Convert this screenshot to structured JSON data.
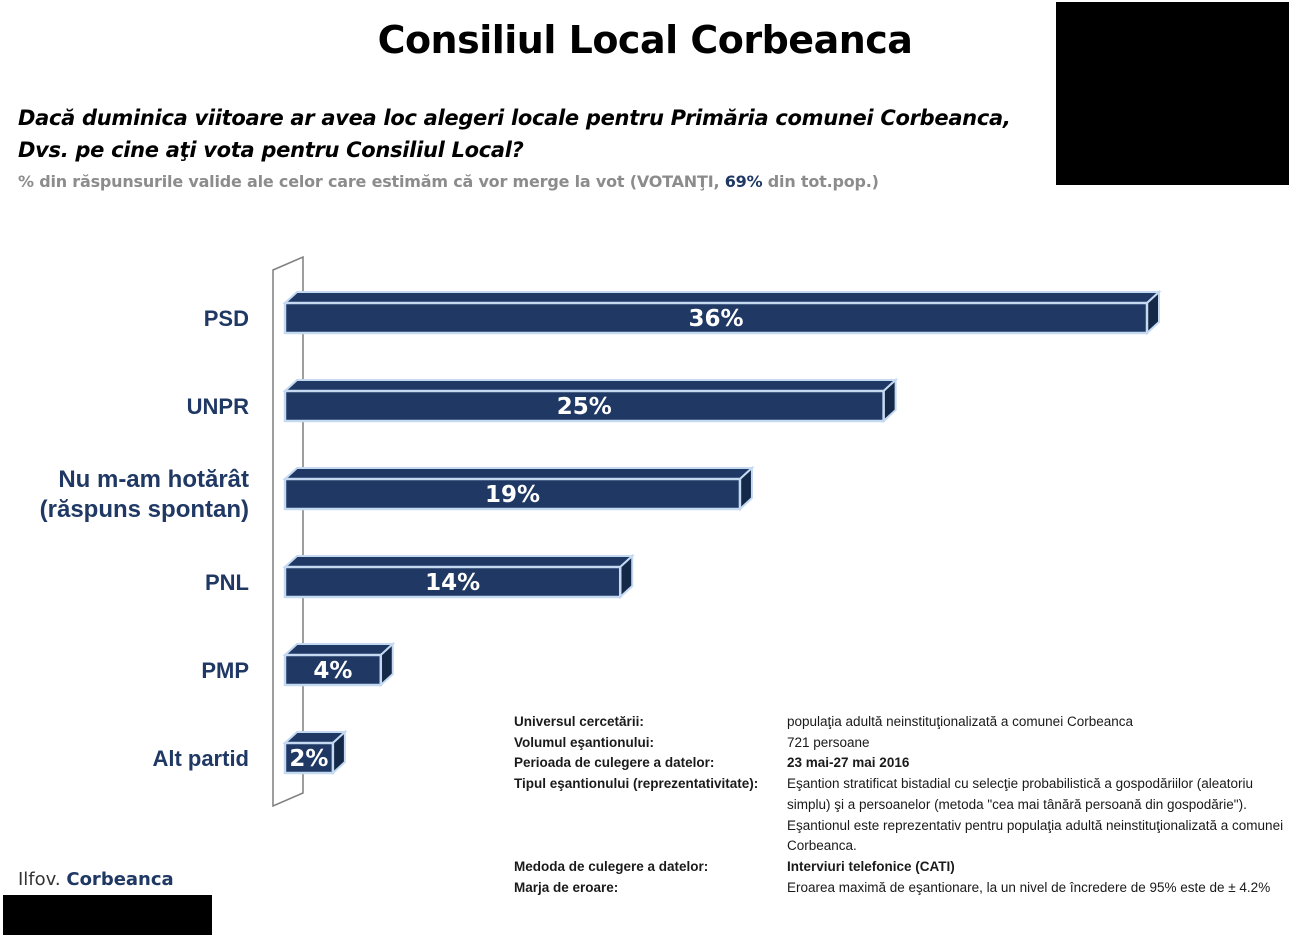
{
  "title": "Consiliul Local Corbeanca",
  "question_line1": "Dacă duminica viitoare ar avea loc alegeri locale pentru Primăria comunei Corbeanca,",
  "question_line2": "Dvs. pe cine aţi vota pentru Consiliul Local?",
  "note": {
    "before": "% din răspunsurile valide ale celor care estimăm că vor merge la vot (VOTANŢI, ",
    "highlight": "69%",
    "after": " din tot.pop.)"
  },
  "chart_data": {
    "type": "bar",
    "orientation": "horizontal",
    "categories": [
      "PSD",
      "UNPR",
      [
        "Nu m-am hotărât",
        "(răspuns spontan)"
      ],
      "PNL",
      "PMP",
      "Alt partid"
    ],
    "values": [
      36,
      25,
      19,
      14,
      4,
      2
    ],
    "data_labels": [
      "36%",
      "25%",
      "19%",
      "14%",
      "4%",
      "2%"
    ],
    "unit": "%",
    "xlim": [
      0,
      36
    ],
    "grid": false,
    "legend": "none",
    "colors": {
      "bar": "#1f3864",
      "bar_outline": "#c5d9f1",
      "label": "#ffffff",
      "category": "#1f3864"
    }
  },
  "methodology": [
    {
      "key": "Universul cercetării:",
      "value": "populaţia adultă neinstituţionalizată a comunei Corbeanca",
      "bold": false
    },
    {
      "key": "Volumul eşantionului:",
      "value": "721 persoane",
      "bold": false
    },
    {
      "key": "Perioada de culegere a datelor:",
      "value": "23 mai-27 mai 2016",
      "bold": true
    },
    {
      "key": "Tipul eşantionului (reprezentativitate):",
      "value": "Eşantion stratificat bistadial cu selecţie probabilistică a gospodăriilor (aleatoriu simplu) şi a persoanelor (metoda \"cea mai tânără persoană din gospodărie\"). Eşantionul este reprezentativ pentru populaţia adultă neinstituţionalizată a comunei Corbeanca.",
      "bold": false
    },
    {
      "key": "Medoda de culegere a datelor:",
      "value": "Interviuri telefonice (CATI)",
      "bold": true
    },
    {
      "key": "Marja de eroare:",
      "value": "Eroarea maximă de eşantionare, la un nivel de încredere de 95% este de ± 4.2%",
      "bold": false
    }
  ],
  "footer": {
    "region": "Ilfov. ",
    "locality": "Corbeanca"
  }
}
